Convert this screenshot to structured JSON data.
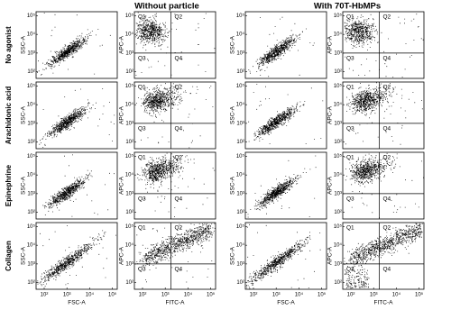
{
  "headers": [
    "Without particle",
    "With 70T-HbMPs"
  ],
  "rows": [
    "No agonist",
    "Arachidonic acid",
    "Epinephrine",
    "Collagen"
  ],
  "axes": {
    "scatter": {
      "x": "FSC-A",
      "y": "SSC-A"
    },
    "quadrant": {
      "x": "FITC-A",
      "y": "APC-A"
    }
  },
  "quadrants": [
    "Q1",
    "Q2",
    "Q3",
    "Q4"
  ],
  "ticks": [
    "10²",
    "10³",
    "10⁴",
    "10⁵"
  ]
}
